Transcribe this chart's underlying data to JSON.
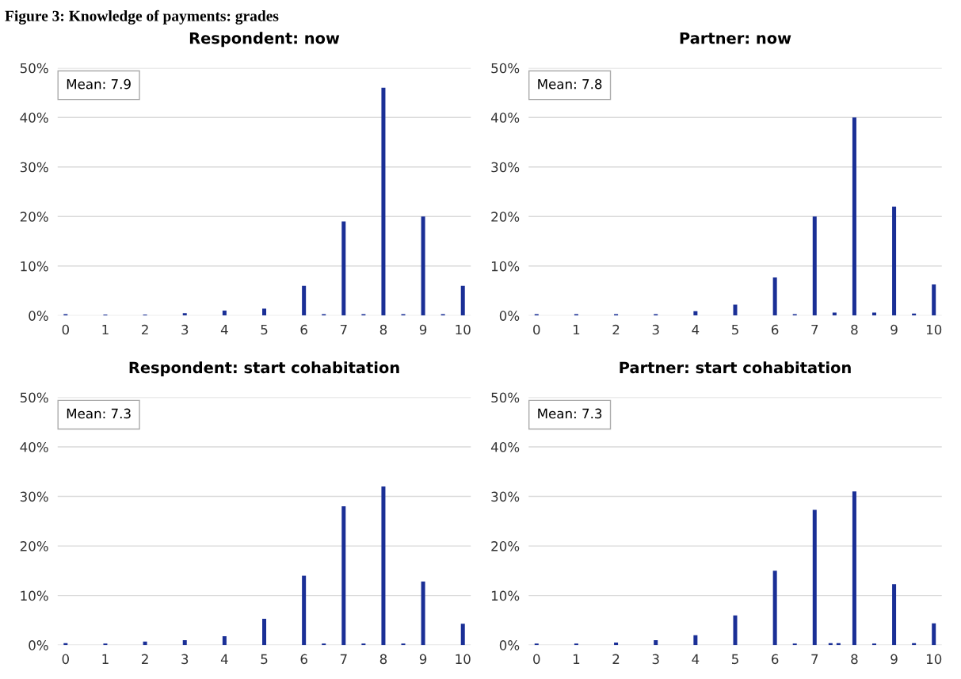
{
  "chart_data": [
    {
      "type": "bar",
      "title": "Respondent: now",
      "annotations": [
        "Figure 3: Knowledge of payments: grades",
        "Mean: 7.9"
      ],
      "x": [
        0,
        1,
        2,
        3,
        4,
        5,
        6,
        6.5,
        7,
        7.5,
        8,
        8.5,
        9,
        9.5,
        10
      ],
      "values": [
        0.3,
        0.2,
        0.2,
        0.5,
        1.0,
        1.4,
        6,
        0.3,
        19,
        0.3,
        46,
        0.3,
        20,
        0.3,
        6
      ],
      "color": "#1a2f96",
      "xlim": [
        -0.2,
        10.2
      ],
      "xticks": [
        0,
        1,
        2,
        3,
        4,
        5,
        6,
        7,
        8,
        9,
        10
      ],
      "ylim": [
        0,
        50
      ],
      "yticks": [
        {
          "value": 0,
          "label": "0%"
        },
        {
          "value": 10,
          "label": "10%"
        },
        {
          "value": 20,
          "label": "20%"
        },
        {
          "value": 30,
          "label": "30%"
        },
        {
          "value": 40,
          "label": "40%"
        },
        {
          "value": 50,
          "label": "50%"
        }
      ],
      "grid": "y"
    },
    {
      "type": "bar",
      "title": "Partner: now",
      "annotations": [
        "Mean: 7.8"
      ],
      "x": [
        0,
        1,
        2,
        3,
        4,
        5,
        6,
        6.5,
        7,
        7.5,
        8,
        8.5,
        9,
        9.5,
        10
      ],
      "values": [
        0.3,
        0.3,
        0.3,
        0.3,
        0.9,
        2.2,
        7.7,
        0.3,
        20,
        0.6,
        40,
        0.6,
        22,
        0.4,
        6.3
      ],
      "color": "#1a2f96",
      "xlim": [
        -0.2,
        10.2
      ],
      "xticks": [
        0,
        1,
        2,
        3,
        4,
        5,
        6,
        7,
        8,
        9,
        10
      ],
      "ylim": [
        0,
        50
      ],
      "yticks": [
        {
          "value": 0,
          "label": "0%"
        },
        {
          "value": 10,
          "label": "10%"
        },
        {
          "value": 20,
          "label": "20%"
        },
        {
          "value": 30,
          "label": "30%"
        },
        {
          "value": 40,
          "label": "40%"
        },
        {
          "value": 50,
          "label": "50%"
        }
      ],
      "grid": "y"
    },
    {
      "type": "bar",
      "title": "Respondent: start cohabitation",
      "annotations": [
        "Mean: 7.3"
      ],
      "x": [
        0,
        1,
        2,
        3,
        4,
        5,
        6,
        6.5,
        7,
        7.5,
        8,
        8.5,
        9,
        10
      ],
      "values": [
        0.4,
        0.3,
        0.7,
        1.0,
        1.8,
        5.3,
        14,
        0.3,
        28,
        0.3,
        32,
        0.3,
        12.8,
        4.3
      ],
      "color": "#1a2f96",
      "xlim": [
        -0.2,
        10.2
      ],
      "xticks": [
        0,
        1,
        2,
        3,
        4,
        5,
        6,
        7,
        8,
        9,
        10
      ],
      "ylim": [
        0,
        50
      ],
      "yticks": [
        {
          "value": 0,
          "label": "0%"
        },
        {
          "value": 10,
          "label": "10%"
        },
        {
          "value": 20,
          "label": "20%"
        },
        {
          "value": 30,
          "label": "30%"
        },
        {
          "value": 40,
          "label": "40%"
        },
        {
          "value": 50,
          "label": "50%"
        }
      ],
      "grid": "y"
    },
    {
      "type": "bar",
      "title": "Partner: start cohabitation",
      "annotations": [
        "Mean: 7.3"
      ],
      "x": [
        0,
        1,
        2,
        3,
        4,
        5,
        6,
        6.5,
        7,
        7.4,
        7.6,
        8,
        8.5,
        9,
        9.5,
        10
      ],
      "values": [
        0.3,
        0.3,
        0.5,
        1.0,
        2.0,
        6.0,
        15,
        0.3,
        27.3,
        0.4,
        0.4,
        31,
        0.3,
        12.3,
        0.4,
        4.4
      ],
      "color": "#1a2f96",
      "xlim": [
        -0.2,
        10.2
      ],
      "xticks": [
        0,
        1,
        2,
        3,
        4,
        5,
        6,
        7,
        8,
        9,
        10
      ],
      "ylim": [
        0,
        50
      ],
      "yticks": [
        {
          "value": 0,
          "label": "0%"
        },
        {
          "value": 10,
          "label": "10%"
        },
        {
          "value": 20,
          "label": "20%"
        },
        {
          "value": 30,
          "label": "30%"
        },
        {
          "value": 40,
          "label": "40%"
        },
        {
          "value": 50,
          "label": "50%"
        }
      ],
      "grid": "y"
    }
  ]
}
